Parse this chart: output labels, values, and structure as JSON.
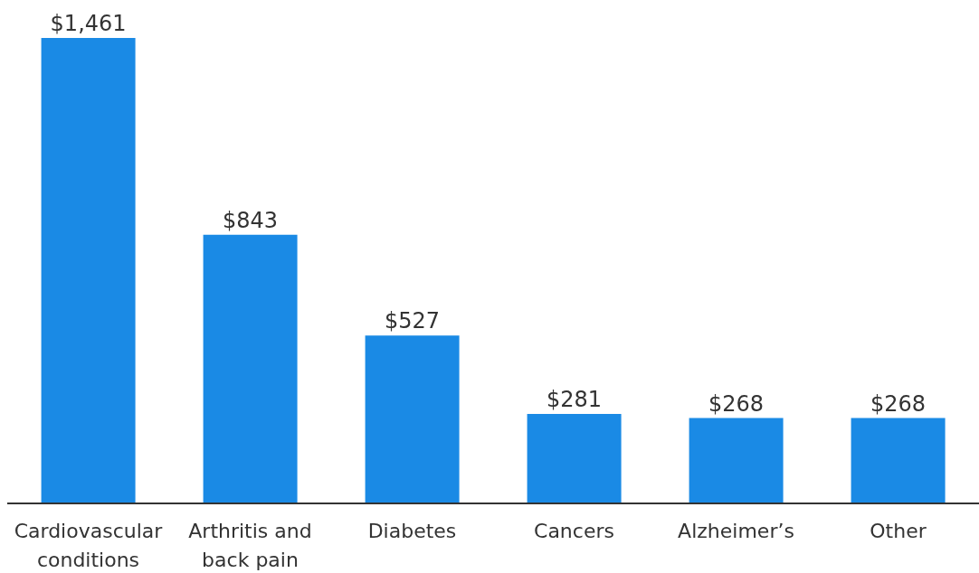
{
  "chart_data": {
    "type": "bar",
    "categories": [
      "Cardiovascular conditions",
      "Arthritis and back pain",
      "Diabetes",
      "Cancers",
      "Alzheimer’s",
      "Other"
    ],
    "values": [
      1461,
      843,
      527,
      281,
      268,
      268
    ],
    "value_labels": [
      "$1,461",
      "$843",
      "$527",
      "$281",
      "$268",
      "$268"
    ],
    "color": "#1a8ae5",
    "grid": false,
    "legend": false
  }
}
